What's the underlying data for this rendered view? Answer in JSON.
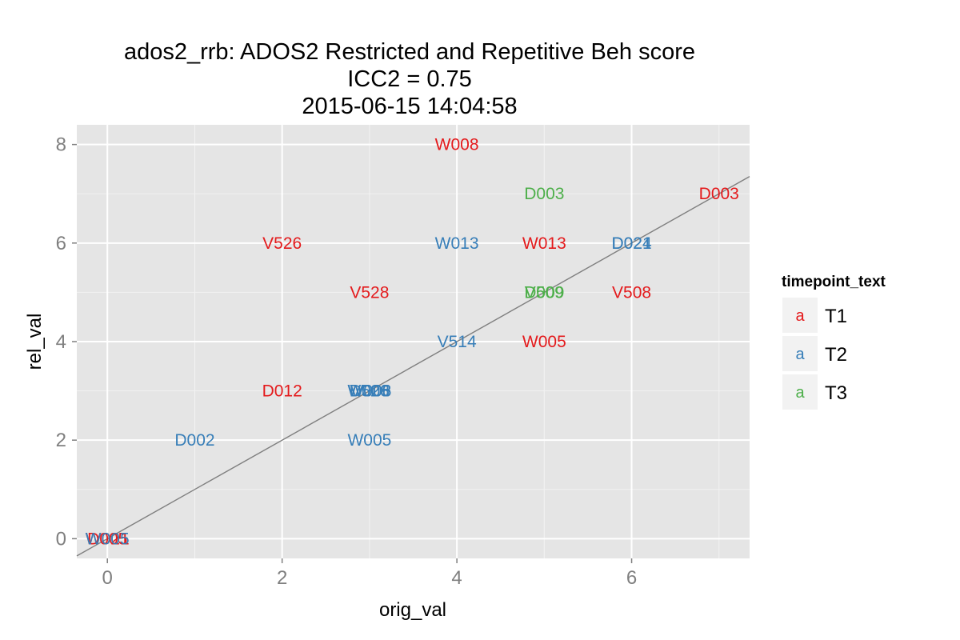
{
  "chart_data": {
    "type": "scatter",
    "title_lines": [
      "ados2_rrb: ADOS2 Restricted and Repetitive Beh score",
      "ICC2 = 0.75",
      "2015-06-15 14:04:58"
    ],
    "xlabel": "orig_val",
    "ylabel": "rel_val",
    "xlim": [
      -0.35,
      7.35
    ],
    "ylim": [
      -0.4,
      8.4
    ],
    "x_ticks": [
      0,
      2,
      4,
      6
    ],
    "y_ticks": [
      0,
      2,
      4,
      6,
      8
    ],
    "grid": true,
    "background": "#E5E5E5",
    "reference_line": {
      "intercept": 0,
      "slope": 1,
      "color": "#7F7F7F"
    },
    "legend": {
      "title": "timepoint_text",
      "position": "right",
      "key_glyph": "a",
      "entries": [
        {
          "label": "T1",
          "color": "#E41A1C"
        },
        {
          "label": "T2",
          "color": "#377EB8"
        },
        {
          "label": "T3",
          "color": "#4DAF4A"
        }
      ]
    },
    "series": [
      {
        "name": "T1",
        "color": "#E41A1C",
        "points": [
          {
            "x": 4,
            "y": 8,
            "label": "W008"
          },
          {
            "x": 7,
            "y": 7,
            "label": "D003"
          },
          {
            "x": 2,
            "y": 6,
            "label": "V526"
          },
          {
            "x": 5,
            "y": 6,
            "label": "W013"
          },
          {
            "x": 3,
            "y": 5,
            "label": "V528"
          },
          {
            "x": 6,
            "y": 5,
            "label": "V508"
          },
          {
            "x": 5,
            "y": 4,
            "label": "W005"
          },
          {
            "x": 2,
            "y": 3,
            "label": "D012"
          },
          {
            "x": 0,
            "y": 0,
            "label": "W021"
          },
          {
            "x": 0,
            "y": 0,
            "label": "D005"
          }
        ]
      },
      {
        "name": "T2",
        "color": "#377EB8",
        "points": [
          {
            "x": 4,
            "y": 6,
            "label": "W013"
          },
          {
            "x": 6,
            "y": 6,
            "label": "D024"
          },
          {
            "x": 6,
            "y": 6,
            "label": "D021"
          },
          {
            "x": 4,
            "y": 4,
            "label": "V514"
          },
          {
            "x": 3,
            "y": 3,
            "label": "W003"
          },
          {
            "x": 3,
            "y": 3,
            "label": "D008"
          },
          {
            "x": 3,
            "y": 3,
            "label": "V526"
          },
          {
            "x": 3,
            "y": 3,
            "label": "W006"
          },
          {
            "x": 1,
            "y": 2,
            "label": "D002"
          },
          {
            "x": 3,
            "y": 2,
            "label": "W005"
          },
          {
            "x": 0,
            "y": 0,
            "label": "W005"
          }
        ]
      },
      {
        "name": "T3",
        "color": "#4DAF4A",
        "points": [
          {
            "x": 5,
            "y": 7,
            "label": "D003"
          },
          {
            "x": 5,
            "y": 5,
            "label": "V509"
          },
          {
            "x": 5,
            "y": 5,
            "label": "D009"
          }
        ]
      }
    ]
  }
}
